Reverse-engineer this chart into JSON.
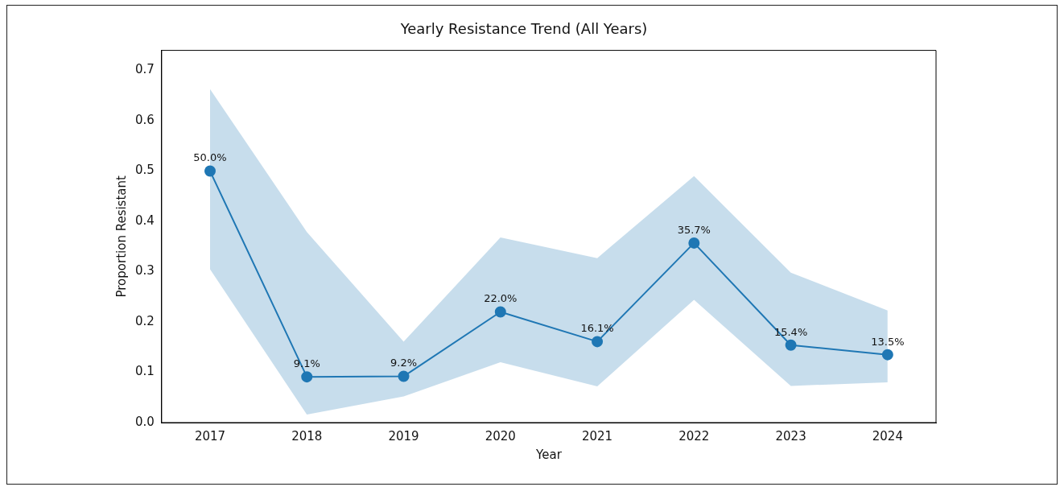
{
  "chart_data": {
    "type": "line",
    "title": "Yearly Resistance Trend (All Years)",
    "xlabel": "Year",
    "ylabel": "Proportion Resistant",
    "categories": [
      "2017",
      "2018",
      "2019",
      "2020",
      "2021",
      "2022",
      "2023",
      "2024"
    ],
    "series": [
      {
        "color": "#1f77b4",
        "values": [
          0.5,
          0.091,
          0.092,
          0.22,
          0.161,
          0.357,
          0.154,
          0.135
        ],
        "lower": [
          0.305,
          0.016,
          0.052,
          0.12,
          0.072,
          0.244,
          0.073,
          0.08
        ],
        "upper": [
          0.663,
          0.379,
          0.161,
          0.368,
          0.327,
          0.49,
          0.298,
          0.223
        ],
        "value_labels": [
          "50.0%",
          "9.1%",
          "9.2%",
          "22.0%",
          "16.1%",
          "35.7%",
          "15.4%",
          "13.5%"
        ]
      }
    ],
    "ylim": [
      0,
      0.74
    ],
    "yticks": [
      {
        "value": 0,
        "label": "0.0"
      },
      {
        "value": 0.1,
        "label": "0.1"
      },
      {
        "value": 0.2,
        "label": "0.2"
      },
      {
        "value": 0.3,
        "label": "0.3"
      },
      {
        "value": 0.4,
        "label": "0.4"
      },
      {
        "value": 0.5,
        "label": "0.5"
      },
      {
        "value": 0.6,
        "label": "0.6"
      },
      {
        "value": 0.7,
        "label": "0.7"
      }
    ],
    "grid": false,
    "legend": false,
    "marker": "circle",
    "line_style": "solid"
  }
}
